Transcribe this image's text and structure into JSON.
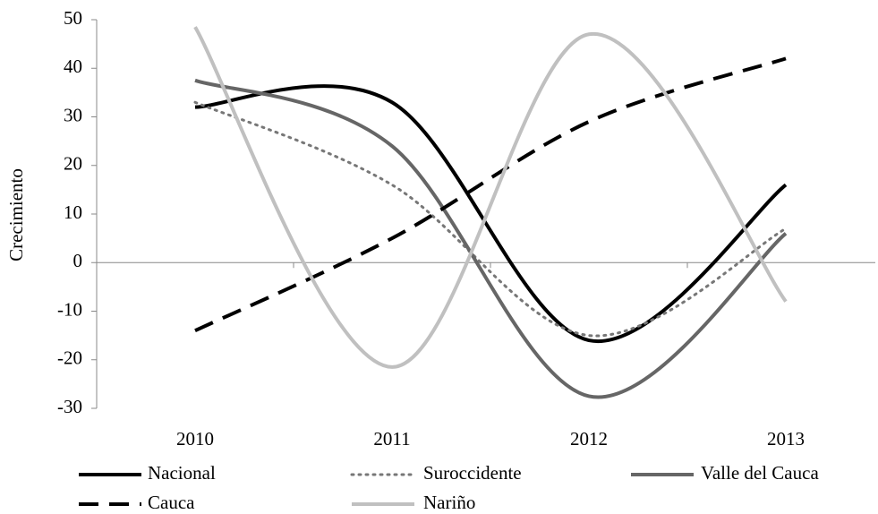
{
  "chart_data": {
    "type": "line",
    "y_label": "Crecimiento",
    "categories": [
      "2010",
      "2011",
      "2012",
      "2013"
    ],
    "series": [
      {
        "name": "Nacional",
        "color": "#000000",
        "dash": "solid",
        "values": [
          32,
          33,
          -16,
          16
        ]
      },
      {
        "name": "Suroccidente",
        "color": "#777777",
        "dash": "dotted",
        "values": [
          33,
          16,
          -15,
          7
        ]
      },
      {
        "name": "Valle del Cauca",
        "color": "#666666",
        "dash": "solid",
        "values": [
          37.5,
          24,
          -27.5,
          6
        ]
      },
      {
        "name": "Cauca",
        "color": "#000000",
        "dash": "dashed",
        "values": [
          -14,
          5,
          29,
          42
        ]
      },
      {
        "name": "Nariño",
        "color": "#c0c0c0",
        "dash": "solid",
        "values": [
          48.5,
          -21.5,
          47,
          -8
        ]
      }
    ],
    "smooth": true,
    "ylim": [
      -30,
      50
    ],
    "yticks": [
      -30,
      -20,
      -10,
      0,
      10,
      20,
      30,
      40,
      50
    ],
    "legend": "bottom"
  }
}
